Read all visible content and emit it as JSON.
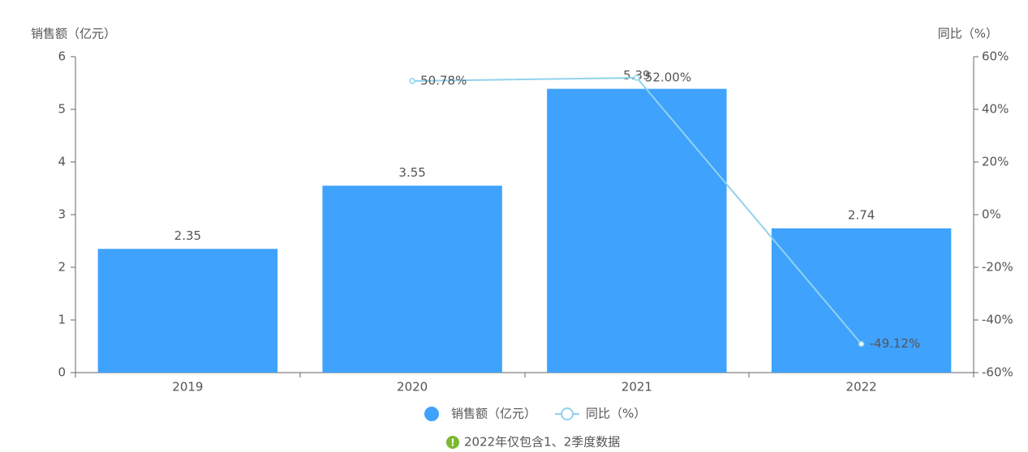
{
  "chart_data": {
    "type": "bar-line",
    "y_label": "销售额（亿元）",
    "y2_label": "同比（%）",
    "categories": [
      "2019",
      "2020",
      "2021",
      "2022"
    ],
    "series": [
      {
        "name": "销售额（亿元）",
        "type": "bar",
        "color": "#3fa2fd",
        "values": [
          2.35,
          3.55,
          5.39,
          2.74
        ]
      },
      {
        "name": "同比（%）",
        "type": "line",
        "axis": "y2",
        "color": "#8fd3ec",
        "values": [
          null,
          50.78,
          52.0,
          -49.12
        ],
        "value_labels": [
          null,
          "50.78%",
          "52.00%",
          "-49.12%"
        ]
      }
    ],
    "ylim": [
      0,
      6
    ],
    "yticks": [
      0,
      1,
      2,
      3,
      4,
      5,
      6
    ],
    "y2lim": [
      -60,
      60
    ],
    "y2ticks": [
      {
        "value": -60,
        "label": "-60%"
      },
      {
        "value": -40,
        "label": "-40%"
      },
      {
        "value": -20,
        "label": "-20%"
      },
      {
        "value": 0,
        "label": "0%"
      },
      {
        "value": 20,
        "label": "20%"
      },
      {
        "value": 40,
        "label": "40%"
      },
      {
        "value": 60,
        "label": "60%"
      }
    ],
    "grid": false,
    "note": "2022年仅包含1、2季度数据"
  }
}
